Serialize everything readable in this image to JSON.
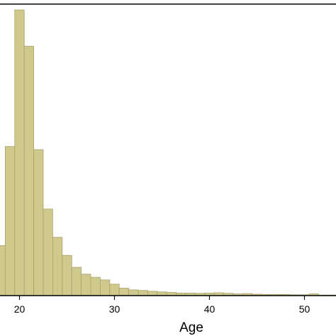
{
  "chart_data": {
    "type": "bar",
    "title": "",
    "xlabel": "Age",
    "ylabel": "",
    "xlim": [
      17.5,
      54.5
    ],
    "ylim": [
      0,
      1
    ],
    "bin_width": 1,
    "x_ticks": [
      20,
      30,
      40,
      50
    ],
    "x_tick_labels": [
      "20",
      "30",
      "40",
      "50"
    ],
    "grid": false,
    "legend": "none",
    "bins": [
      {
        "start": 17.5,
        "value": 0.175
      },
      {
        "start": 18.5,
        "value": 0.522
      },
      {
        "start": 19.5,
        "value": 1.0
      },
      {
        "start": 20.5,
        "value": 0.873
      },
      {
        "start": 21.5,
        "value": 0.511
      },
      {
        "start": 22.5,
        "value": 0.303
      },
      {
        "start": 23.5,
        "value": 0.204
      },
      {
        "start": 24.5,
        "value": 0.141
      },
      {
        "start": 25.5,
        "value": 0.099
      },
      {
        "start": 26.5,
        "value": 0.075
      },
      {
        "start": 27.5,
        "value": 0.064
      },
      {
        "start": 28.5,
        "value": 0.055
      },
      {
        "start": 29.5,
        "value": 0.04
      },
      {
        "start": 30.5,
        "value": 0.026
      },
      {
        "start": 31.5,
        "value": 0.02
      },
      {
        "start": 32.5,
        "value": 0.018
      },
      {
        "start": 33.5,
        "value": 0.015
      },
      {
        "start": 34.5,
        "value": 0.013
      },
      {
        "start": 35.5,
        "value": 0.011
      },
      {
        "start": 36.5,
        "value": 0.009
      },
      {
        "start": 37.5,
        "value": 0.009
      },
      {
        "start": 38.5,
        "value": 0.008
      },
      {
        "start": 39.5,
        "value": 0.009
      },
      {
        "start": 40.5,
        "value": 0.01
      },
      {
        "start": 41.5,
        "value": 0.008
      },
      {
        "start": 42.5,
        "value": 0.006
      },
      {
        "start": 43.5,
        "value": 0.007
      },
      {
        "start": 44.5,
        "value": 0.005
      },
      {
        "start": 45.5,
        "value": 0.004
      },
      {
        "start": 46.5,
        "value": 0.004
      },
      {
        "start": 47.5,
        "value": 0.004
      },
      {
        "start": 48.5,
        "value": 0.003
      },
      {
        "start": 49.5,
        "value": 0.003
      },
      {
        "start": 50.5,
        "value": 0.006
      },
      {
        "start": 51.5,
        "value": 0.002
      },
      {
        "start": 52.5,
        "value": 0.002
      },
      {
        "start": 53.5,
        "value": 0.002
      }
    ],
    "colors": {
      "bar_fill": "#cfc98e",
      "bar_stroke": "#a8a26a",
      "axis": "#000000",
      "background": "#ffffff"
    }
  }
}
